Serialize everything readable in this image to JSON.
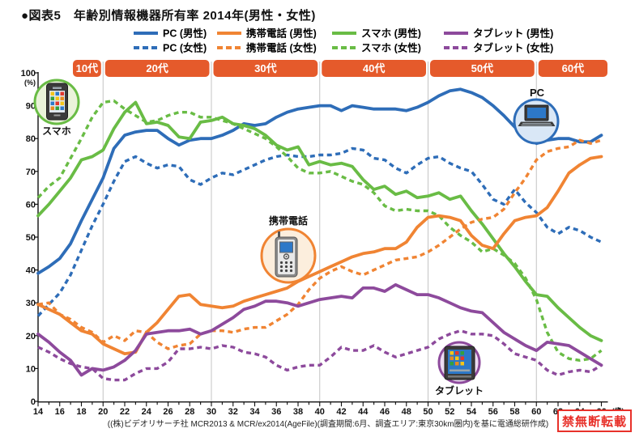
{
  "title": "●図表5　年齢別情報機器所有率 2014年(男性・女性)",
  "footer": "((株)ビデオリサーチ社 MCR2013 & MCR/ex2014(AgeFile)(調査期間:6月、調査エリア:東京30km圏内)を基に電通総研作成)",
  "stamp": "禁無断転載",
  "colors": {
    "pc": "#2e6db8",
    "keitai": "#f08433",
    "sumaho": "#69bc45",
    "tablet": "#8d4a9c",
    "band": "#e55a2b",
    "stamp_red": "#e8312a",
    "gridline": "#c4c4c4",
    "axis": "#111111"
  },
  "age_bands": [
    {
      "label": "10代"
    },
    {
      "label": "20代"
    },
    {
      "label": "30代"
    },
    {
      "label": "40代"
    },
    {
      "label": "50代"
    },
    {
      "label": "60代"
    }
  ],
  "icons": [
    {
      "id": "sumaho",
      "label": "スマホ"
    },
    {
      "id": "pc",
      "label": "PC"
    },
    {
      "id": "keitai",
      "label": "携帯電話"
    },
    {
      "id": "tablet",
      "label": "タブレット"
    }
  ],
  "axes": {
    "y_unit": "(%)",
    "x_unit": "(歳)",
    "y_ticks": [
      0,
      10,
      20,
      30,
      40,
      50,
      60,
      70,
      80,
      90,
      100
    ],
    "x_label_ticks": [
      14,
      16,
      18,
      20,
      22,
      24,
      26,
      28,
      30,
      32,
      34,
      36,
      38,
      40,
      42,
      44,
      46,
      48,
      50,
      52,
      54,
      56,
      58,
      60,
      62,
      64,
      66
    ]
  },
  "chart_data": {
    "type": "line",
    "title": "年齢別情報機器所有率 2014年(男性・女性)",
    "x_start": 14,
    "x_end": 66,
    "ylim": [
      0,
      100
    ],
    "grid_decades": [
      20,
      30,
      40,
      50,
      60
    ],
    "series": [
      {
        "key": "pc_m",
        "name": "PC (男性)",
        "color_key": "pc",
        "dashed": false,
        "values": [
          39,
          41,
          43.5,
          48,
          55,
          61.5,
          68,
          77,
          81,
          82,
          82.5,
          82.5,
          80,
          78,
          79.5,
          80,
          80,
          81,
          82.5,
          84.5,
          84,
          84.5,
          86.5,
          88,
          89,
          89.5,
          90,
          90,
          88.5,
          90,
          89.5,
          89,
          89,
          89,
          88.5,
          89.5,
          91,
          93,
          94.5,
          95,
          94,
          92.5,
          90,
          87,
          83.5,
          81,
          78.5,
          79.5,
          80,
          80,
          79,
          79,
          81
        ]
      },
      {
        "key": "keitai_m",
        "name": "携帯電話 (男性)",
        "color_key": "keitai",
        "dashed": false,
        "values": [
          29.5,
          28,
          26.5,
          24,
          21.5,
          20.5,
          17.5,
          16,
          14.5,
          15,
          21,
          24,
          28,
          32,
          32.5,
          29.5,
          29,
          28.5,
          29,
          30.5,
          31.5,
          32.5,
          33.5,
          34.5,
          36.5,
          38,
          39.5,
          41,
          42.5,
          44,
          45,
          45.5,
          46.5,
          46.5,
          48.5,
          53,
          56,
          56.5,
          56,
          55,
          50.5,
          47.5,
          46.5,
          51,
          55,
          56,
          56.5,
          59,
          64,
          69.5,
          72,
          74,
          74.5
        ]
      },
      {
        "key": "sumaho_m",
        "name": "スマホ (男性)",
        "color_key": "sumaho",
        "dashed": false,
        "values": [
          56.5,
          60,
          64,
          68,
          73.5,
          74.5,
          76.5,
          83,
          88,
          91,
          84.5,
          85,
          84,
          80.5,
          80,
          85,
          85.5,
          86.5,
          84.5,
          84,
          83,
          81,
          78,
          76.5,
          77.5,
          72,
          73,
          72,
          72.5,
          71.5,
          67.5,
          64.5,
          65.5,
          63,
          64,
          62,
          62.5,
          63.5,
          61.5,
          62.5,
          58,
          54,
          49.5,
          45,
          41,
          36.5,
          32.5,
          32,
          28.5,
          25.5,
          22.5,
          20,
          18.5
        ]
      },
      {
        "key": "tablet_m",
        "name": "タブレット (男性)",
        "color_key": "tablet",
        "dashed": false,
        "values": [
          20.5,
          18,
          15,
          12.5,
          8,
          10,
          9.5,
          10.5,
          12.5,
          15.5,
          20.5,
          21,
          21.5,
          21.5,
          22,
          20.5,
          21.5,
          23.5,
          25.5,
          28,
          29,
          30.5,
          30.5,
          30,
          29,
          30,
          31,
          31.5,
          32,
          31.5,
          34.5,
          34.5,
          33.5,
          35.5,
          34,
          32.5,
          32.5,
          31.5,
          30,
          28.5,
          27.5,
          27,
          24,
          21,
          19,
          17,
          15.5,
          18,
          17.5,
          17,
          15,
          13,
          11
        ]
      },
      {
        "key": "pc_f",
        "name": "PC (女性)",
        "color_key": "pc",
        "dashed": true,
        "values": [
          26,
          29.5,
          33,
          38.5,
          46,
          53.5,
          60,
          67,
          73,
          74.5,
          72.5,
          71,
          72,
          71.5,
          67.5,
          66,
          68,
          69.5,
          69,
          70.5,
          72,
          73.5,
          74.5,
          75,
          74.5,
          74.5,
          75,
          75,
          75.5,
          77,
          76.5,
          74,
          73.5,
          71,
          69.5,
          72,
          74,
          74.5,
          72.5,
          71,
          70,
          66,
          61.5,
          60,
          64.5,
          60.5,
          57.5,
          53,
          51,
          53,
          52,
          50,
          48.5
        ]
      },
      {
        "key": "keitai_f",
        "name": "携帯電話 (女性)",
        "color_key": "keitai",
        "dashed": true,
        "values": [
          29.5,
          30,
          26.5,
          25,
          22.5,
          21,
          18,
          20,
          18.5,
          21.5,
          21,
          18,
          16,
          17,
          17.5,
          20.5,
          21.5,
          21.5,
          21,
          22,
          22.5,
          22.5,
          24.5,
          26.5,
          29.5,
          34,
          37.5,
          39.5,
          41,
          39.5,
          38.5,
          40,
          41.5,
          43,
          43.5,
          44,
          45.5,
          47.5,
          50,
          52.5,
          54.5,
          55.5,
          56,
          58.5,
          63.5,
          68,
          73.5,
          76,
          77,
          77.5,
          79.5,
          78.5,
          79.5
        ]
      },
      {
        "key": "sumaho_f",
        "name": "スマホ (女性)",
        "color_key": "sumaho",
        "dashed": true,
        "values": [
          62,
          65.5,
          68,
          74,
          80,
          86.5,
          91,
          91.5,
          89,
          87,
          85,
          85.5,
          87,
          88,
          88,
          86.5,
          86.5,
          85.5,
          84.5,
          83,
          81.5,
          80,
          77.5,
          74.5,
          71,
          69.5,
          69.5,
          70,
          68.5,
          67,
          66,
          63.5,
          59.5,
          58,
          58.5,
          58,
          58,
          56.5,
          53,
          50.5,
          48.5,
          45.5,
          46.5,
          44.5,
          42,
          37.5,
          31,
          21,
          15,
          13,
          12.5,
          13,
          15.5
        ]
      },
      {
        "key": "tablet_f",
        "name": "タブレット (女性)",
        "color_key": "tablet",
        "dashed": true,
        "values": [
          16.5,
          15,
          13,
          11.5,
          10.5,
          10,
          7,
          6.5,
          6.5,
          8.5,
          10,
          10,
          12,
          16,
          16,
          16.5,
          16,
          17,
          16.5,
          15,
          14.5,
          13.5,
          11,
          9.5,
          10.5,
          11,
          11,
          13.5,
          16.5,
          15.5,
          15.5,
          17,
          15,
          13.5,
          14.5,
          15.5,
          16.5,
          19,
          20.5,
          21.5,
          20.5,
          20.5,
          20,
          17.5,
          14.5,
          13.5,
          12.5,
          9.5,
          8,
          9,
          9.5,
          9,
          11
        ]
      }
    ],
    "legend_rows": [
      [
        0,
        1,
        2,
        3
      ],
      [
        4,
        5,
        6,
        7
      ]
    ],
    "draw_order": [
      4,
      0,
      6,
      2,
      5,
      1,
      7,
      3
    ]
  }
}
